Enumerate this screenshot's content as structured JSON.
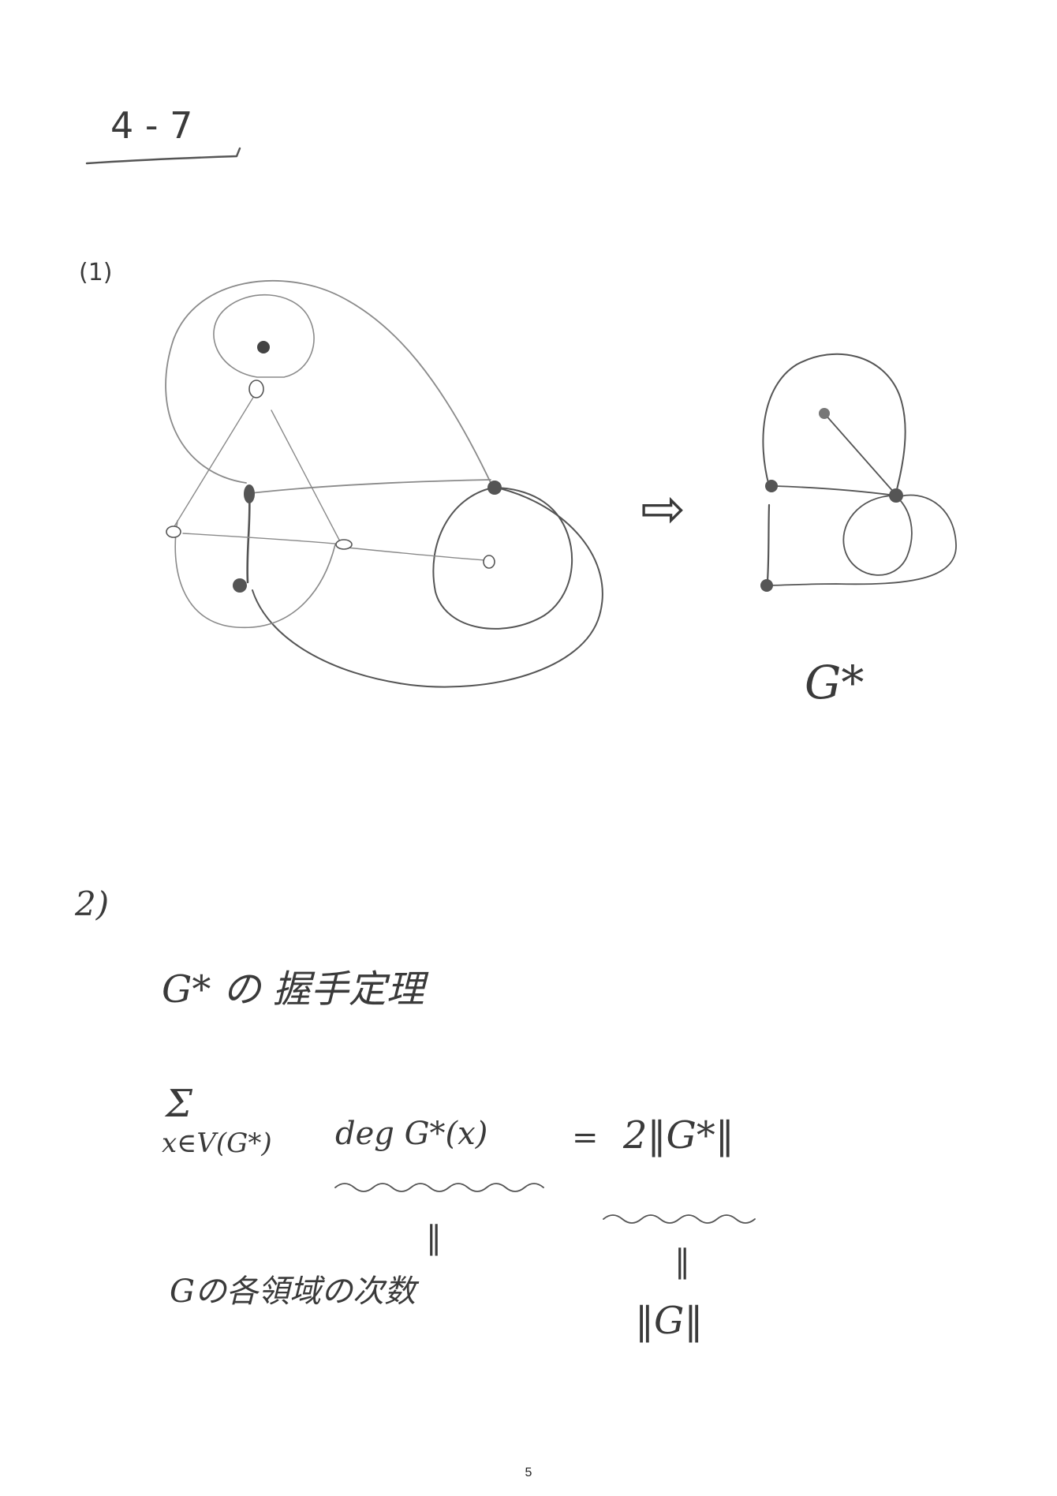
{
  "header": {
    "problem_number": "4 - 7"
  },
  "part1": {
    "label": "(1)",
    "arrow_glyph": "⇨",
    "dual_label": "G*"
  },
  "part2": {
    "label": "2)",
    "theorem_title": "G* の 握手定理",
    "sum_symbol": "Σ",
    "sum_index": "x∈V(G*)",
    "lhs": "deg G*(x)",
    "equals": "=",
    "rhs": "2‖G*‖",
    "eq_sign": "‖",
    "lhs_meaning": "Gの各領域の次数",
    "rhs_meaning": "‖G‖"
  },
  "footer": {
    "page_number": "5"
  }
}
